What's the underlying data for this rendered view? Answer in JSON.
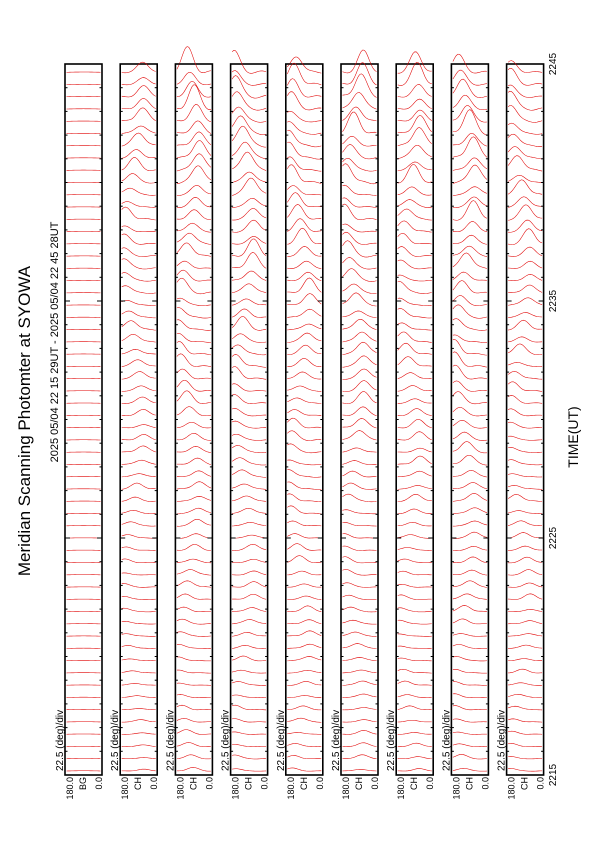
{
  "chart_data": {
    "type": "line",
    "title": "Meridian Scanning Photomter at SYOWA",
    "subtitle": "2025 05/04 22 15 29UT - 2025 05/04 22 45 28UT",
    "xlabel": "TIME(UT)",
    "x_ticks": [
      "2215",
      "2225",
      "2235",
      "2245"
    ],
    "y_range_labels": [
      "180.0",
      "0.0"
    ],
    "scale_label": "22.5 (deg)/div",
    "panels": [
      {
        "channel": "BG",
        "activity": 0.0
      },
      {
        "channel": "CH",
        "activity": 0.55
      },
      {
        "channel": "CH",
        "activity": 0.85
      },
      {
        "channel": "CH",
        "activity": 0.8
      },
      {
        "channel": "CH",
        "activity": 0.8
      },
      {
        "channel": "CH",
        "activity": 0.8
      },
      {
        "channel": "CH",
        "activity": 0.75
      },
      {
        "channel": "CH",
        "activity": 0.9
      },
      {
        "channel": "CH",
        "activity": 0.7
      }
    ],
    "colors": {
      "trace": "#e00000",
      "frame": "#000000"
    },
    "legend": "none",
    "grid": false
  }
}
